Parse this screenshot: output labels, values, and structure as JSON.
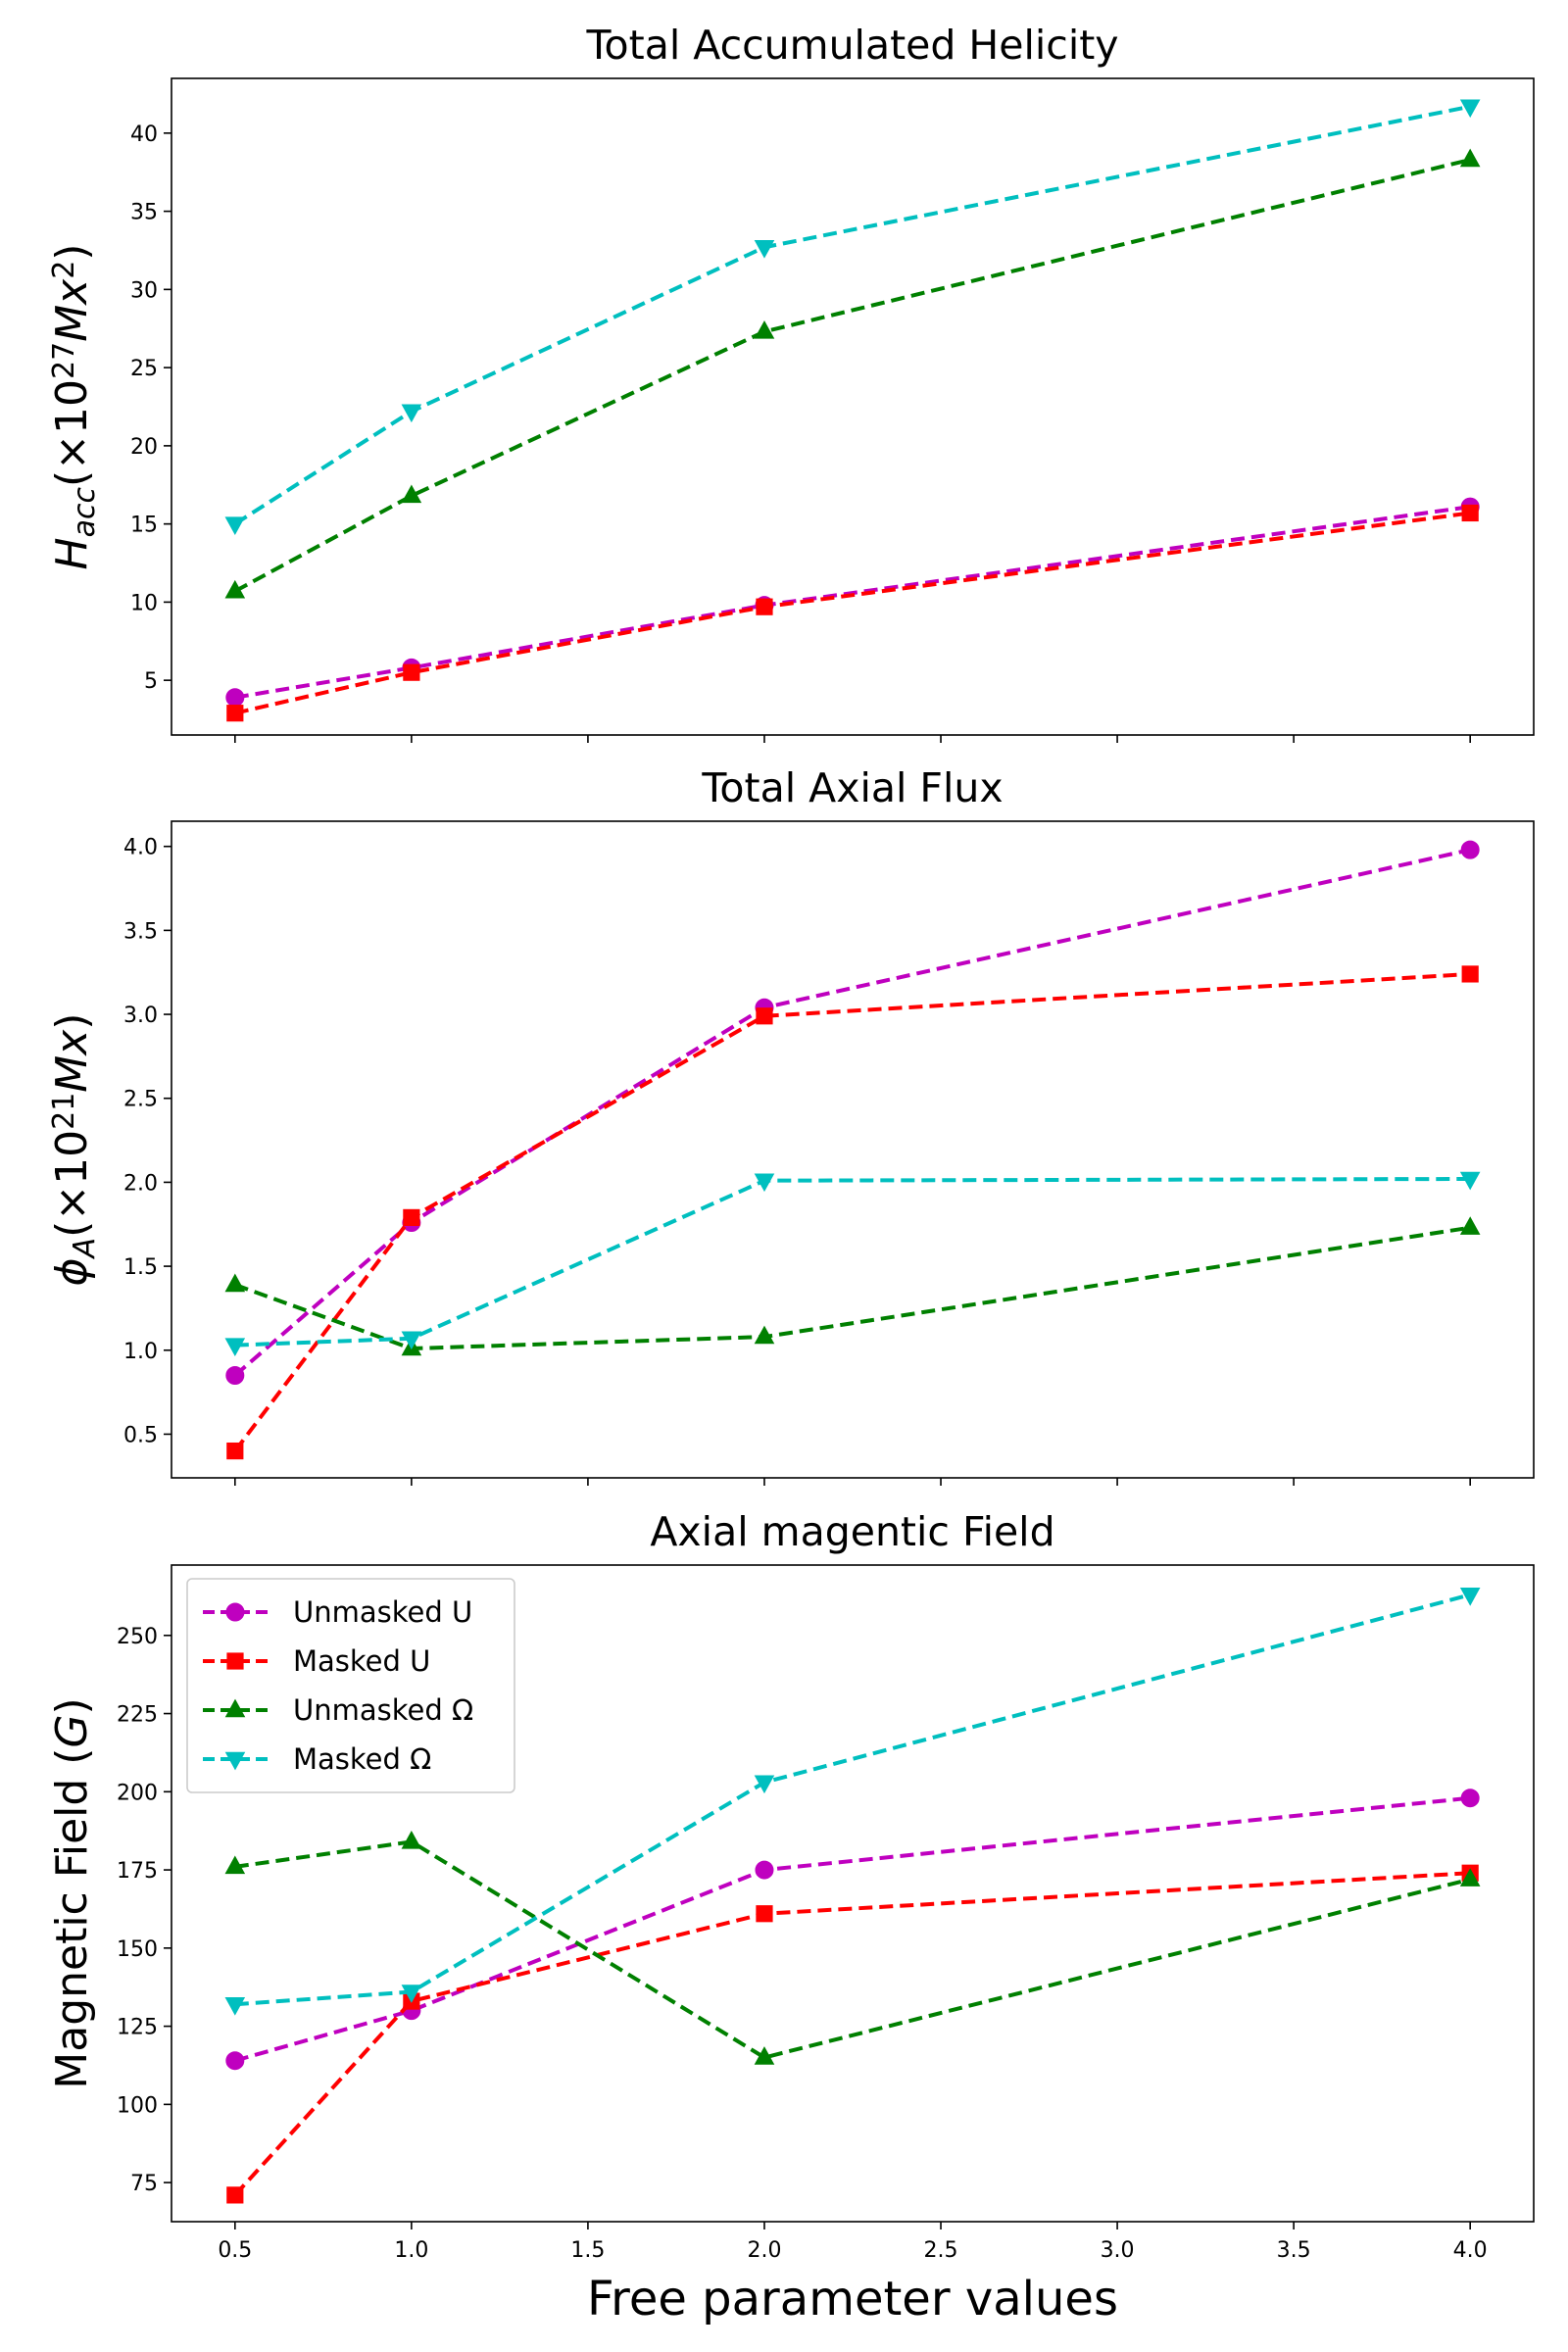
{
  "chart_data": [
    {
      "type": "line",
      "title": "Total Accumulated Helicity",
      "xlabel": "",
      "ylabel": "H_acc(×10^27 Mx^2)",
      "ylabel_parts": {
        "base": "H",
        "sub": "acc",
        "pre": "(×10",
        "sup": "27",
        "mid": "Mx",
        "sup2": "2",
        "post": ")"
      },
      "x": [
        0.5,
        1.0,
        2.0,
        4.0
      ],
      "xlim": [
        0.32,
        4.18
      ],
      "ylim": [
        1.5,
        43.5
      ],
      "yticks": [
        5,
        10,
        15,
        20,
        25,
        30,
        35,
        40
      ],
      "yticks_labels": [
        "5",
        "10",
        "15",
        "20",
        "25",
        "30",
        "35",
        "40"
      ],
      "xticks": [
        0.5,
        1.0,
        1.5,
        2.0,
        2.5,
        3.0,
        3.5,
        4.0
      ],
      "show_xtick_labels": false,
      "grid": false,
      "legend": null,
      "series": [
        {
          "name": "Unmasked U",
          "values": [
            3.9,
            5.8,
            9.8,
            16.1
          ]
        },
        {
          "name": "Masked U",
          "values": [
            2.9,
            5.5,
            9.7,
            15.7
          ]
        },
        {
          "name": "Unmasked Ω",
          "values": [
            10.7,
            16.8,
            27.3,
            38.3
          ]
        },
        {
          "name": "Masked Ω",
          "values": [
            15.0,
            22.2,
            32.7,
            41.7
          ]
        }
      ]
    },
    {
      "type": "line",
      "title": "Total Axial Flux",
      "xlabel": "",
      "ylabel": "φ_A(×10^21 Mx)",
      "ylabel_parts": {
        "base": "ϕ",
        "sub": "A",
        "pre": "(×10",
        "sup": "21",
        "mid": "Mx",
        "sup2": "",
        "post": ")"
      },
      "x": [
        0.5,
        1.0,
        2.0,
        4.0
      ],
      "xlim": [
        0.32,
        4.18
      ],
      "ylim": [
        0.24,
        4.15
      ],
      "yticks": [
        0.5,
        1.0,
        1.5,
        2.0,
        2.5,
        3.0,
        3.5,
        4.0
      ],
      "yticks_labels": [
        "0.5",
        "1.0",
        "1.5",
        "2.0",
        "2.5",
        "3.0",
        "3.5",
        "4.0"
      ],
      "xticks": [
        0.5,
        1.0,
        1.5,
        2.0,
        2.5,
        3.0,
        3.5,
        4.0
      ],
      "show_xtick_labels": false,
      "grid": false,
      "legend": null,
      "series": [
        {
          "name": "Unmasked U",
          "values": [
            0.85,
            1.76,
            3.04,
            3.98
          ]
        },
        {
          "name": "Masked U",
          "values": [
            0.4,
            1.79,
            2.99,
            3.24
          ]
        },
        {
          "name": "Unmasked Ω",
          "values": [
            1.39,
            1.01,
            1.08,
            1.73
          ]
        },
        {
          "name": "Masked Ω",
          "values": [
            1.03,
            1.07,
            2.01,
            2.02
          ]
        }
      ]
    },
    {
      "type": "line",
      "title": "Axial magentic Field",
      "xlabel": "Free parameter values",
      "ylabel": "Magnetic Field (G)",
      "ylabel_parts": {
        "plain": "Magnetic Field (",
        "italic": "G",
        "post": ")"
      },
      "x": [
        0.5,
        1.0,
        2.0,
        4.0
      ],
      "xlim": [
        0.32,
        4.18
      ],
      "ylim": [
        62.5,
        272.5
      ],
      "yticks": [
        75,
        100,
        125,
        150,
        175,
        200,
        225,
        250
      ],
      "yticks_labels": [
        "75",
        "100",
        "125",
        "150",
        "175",
        "200",
        "225",
        "250"
      ],
      "xticks": [
        0.5,
        1.0,
        1.5,
        2.0,
        2.5,
        3.0,
        3.5,
        4.0
      ],
      "xticks_labels": [
        "0.5",
        "1.0",
        "1.5",
        "2.0",
        "2.5",
        "3.0",
        "3.5",
        "4.0"
      ],
      "show_xtick_labels": true,
      "grid": false,
      "legend": "top-left",
      "series": [
        {
          "name": "Unmasked U",
          "values": [
            114,
            130,
            175,
            198
          ]
        },
        {
          "name": "Masked U",
          "values": [
            71,
            133,
            161,
            174
          ]
        },
        {
          "name": "Unmasked Ω",
          "values": [
            176,
            184,
            115,
            172
          ]
        },
        {
          "name": "Masked Ω",
          "values": [
            132,
            136,
            203,
            263
          ]
        }
      ]
    }
  ],
  "series_styles": [
    {
      "name": "Unmasked U",
      "color": "#bf00bf",
      "marker": "circle",
      "line": "dashed"
    },
    {
      "name": "Masked U",
      "color": "#ff0000",
      "marker": "square",
      "line": "dashed"
    },
    {
      "name": "Unmasked Ω",
      "color": "#008000",
      "marker": "triangle-up",
      "line": "dashed"
    },
    {
      "name": "Masked Ω",
      "color": "#00bfbf",
      "marker": "triangle-down",
      "line": "dashed"
    }
  ]
}
